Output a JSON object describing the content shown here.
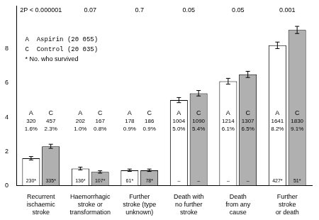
{
  "chart_data": {
    "type": "bar",
    "categories": [
      "Recurrent\nischaemic\nstroke",
      "Haemorrhagic\nstroke or\ntransformation",
      "Further\nstroke (type\nunknown)",
      "Death with\nno further\nstroke",
      "Death\nfrom any\ncause",
      "Further\nstroke\nor death"
    ],
    "series": [
      {
        "name": "A  Aspirin (20 055)",
        "letter": "A",
        "color": "#ffffff",
        "values": [
          1.6,
          1.0,
          0.9,
          5.0,
          6.1,
          8.2
        ],
        "errors": [
          0.1,
          0.08,
          0.07,
          0.15,
          0.17,
          0.19
        ],
        "value_labels": [
          "1.6%",
          "1.0%",
          "0.9%",
          "5.0%",
          "6.1%",
          "8.2%"
        ],
        "n": [
          320,
          202,
          178,
          1004,
          1214,
          1641
        ],
        "survivor_labels": [
          "230*",
          "136*",
          "61*",
          "–",
          "–",
          "427*"
        ]
      },
      {
        "name": "C  Control (20 035)",
        "letter": "C",
        "color": "#b0b0b0",
        "values": [
          2.3,
          0.8,
          0.9,
          5.4,
          6.5,
          9.1
        ],
        "errors": [
          0.12,
          0.07,
          0.07,
          0.16,
          0.18,
          0.21
        ],
        "value_labels": [
          "2.3%",
          "0.8%",
          "0.9%",
          "5.4%",
          "6.5%",
          "9.1%"
        ],
        "n": [
          457,
          167,
          186,
          1090,
          1307,
          1830
        ],
        "survivor_labels": [
          "335*",
          "107*",
          "78*",
          "–",
          "–",
          "51*"
        ]
      }
    ],
    "p_values": [
      "2P < 0.000001",
      "0.07",
      "0.7",
      "0.05",
      "0.05",
      "0.001"
    ],
    "annotations": [
      "* No. who survived"
    ],
    "ylim": [
      0,
      10.5
    ],
    "yticks": [
      0,
      2,
      4,
      6,
      8
    ],
    "grid": false,
    "legend": "upper left",
    "data_labels": true
  }
}
